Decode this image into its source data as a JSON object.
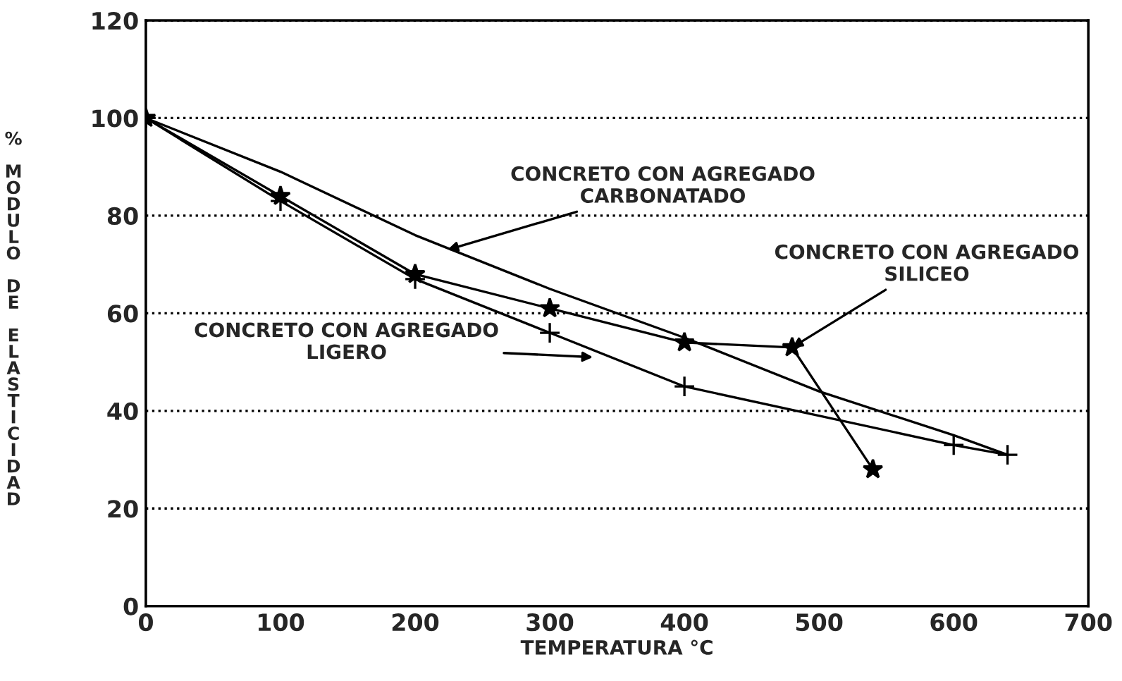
{
  "chart_data": {
    "type": "line",
    "xlabel": "TEMPERATURA °C",
    "ylabel": "% MODULO DE ELASTICIDAD",
    "xlim": [
      0,
      700
    ],
    "xticks": [
      0,
      100,
      200,
      300,
      400,
      500,
      600,
      700
    ],
    "ylim": [
      0,
      120
    ],
    "yticks": [
      0,
      20,
      40,
      60,
      80,
      100,
      120
    ],
    "grid": "y",
    "line_style": "solid",
    "series": [
      {
        "color": "#000000",
        "marker": "none",
        "x": [
          0,
          100,
          200,
          300,
          400,
          500,
          600,
          640
        ],
        "values": [
          100,
          89,
          76,
          65,
          55,
          44,
          35,
          31
        ]
      },
      {
        "color": "#000000",
        "marker": "star",
        "x": [
          0,
          100,
          200,
          300,
          400,
          480,
          540
        ],
        "values": [
          100,
          84,
          68,
          61,
          54,
          53,
          28
        ]
      },
      {
        "color": "#000000",
        "marker": "cross",
        "x": [
          0,
          100,
          200,
          300,
          400,
          600,
          640
        ],
        "values": [
          100,
          83,
          67,
          56,
          45,
          33,
          31
        ]
      }
    ],
    "annotations": [
      {
        "text": "CONCRETO CON AGREGADO\nCARBONATADO",
        "x": 224,
        "y": 73
      },
      {
        "text": "CONCRETO CON AGREGADO\nSILICEO",
        "x": 480,
        "y": 53
      },
      {
        "text": "CONCRETO CON AGREGADO\nLIGERO",
        "x": 332,
        "y": 51
      }
    ]
  }
}
